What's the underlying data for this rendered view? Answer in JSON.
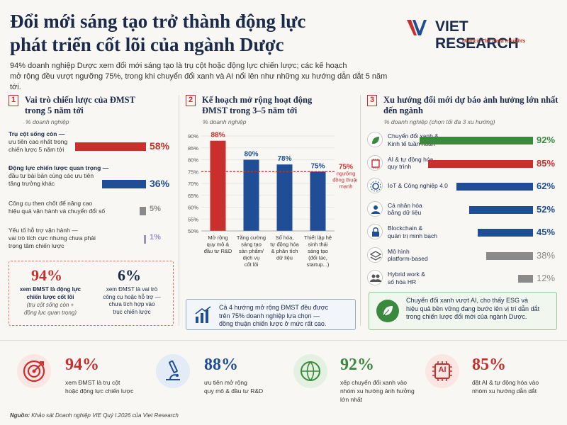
{
  "header": {
    "title_line1": "Đổi mới sáng tạo trở thành động lực",
    "title_line2": "phát triển cốt lõi của ngành Dược",
    "intro_line1": "94% doanh nghiệp Dược xem đổi mới sáng tạo là trụ cột hoặc động lực chiến lược; các kế hoạch",
    "intro_line2": "mở rộng đều vượt ngưỡng 75%, trong khi chuyển đổi xanh và AI nổi lên như những xu hướng dẫn dắt 5 năm tới."
  },
  "logo": {
    "name": "VIET RESEARCH",
    "tagline": "Unlock The Data Insights"
  },
  "colors": {
    "red": "#c9302c",
    "navy": "#1f4e96",
    "gray": "#8a8a8a",
    "purple": "#9c8fc9",
    "green": "#3a8a3e"
  },
  "section1": {
    "num": "1",
    "title_line1": "Vai trò chiến lược của ĐMST",
    "title_line2": "trong 5 năm tới",
    "subtitle": "% doanh nghiệp",
    "items": [
      {
        "label_bold": "Trụ cột sống còn —",
        "label_rest1": "ưu tiên cao nhất trong",
        "label_rest2": "chiến lược 5 năm tới",
        "value": 58,
        "value_label": "58%"
      },
      {
        "label_bold": "Động lực chiến lược quan trọng —",
        "label_rest1": "đầu tư bài bản cùng các ưu tiên",
        "label_rest2": "tăng trưởng khác",
        "value": 36,
        "value_label": "36%"
      },
      {
        "label_bold": "",
        "label_rest1": "Công cụ then chốt để nâng cao",
        "label_rest2": "hiệu quả vận hành và chuyển đổi số",
        "value": 5,
        "value_label": "5%"
      },
      {
        "label_bold": "",
        "label_rest1": "Yếu tố hỗ trợ vận hành —",
        "label_rest2": "vai trò tích cực nhưng chưa phải",
        "label_rest3": "trọng tâm chiến lược",
        "value": 1,
        "value_label": "1%"
      }
    ],
    "summary_left": {
      "num": "94%",
      "line1": "xem ĐMST là động lực",
      "line2": "chiến lược cốt lõi",
      "line3": "(trụ cột sống còn +",
      "line4": "động lực quan trọng)"
    },
    "summary_right": {
      "num": "6%",
      "line1": "xem ĐMST là vai trò",
      "line2": "công cụ hoặc hỗ trợ —",
      "line3": "chưa tích hợp vào",
      "line4": "trục chiến lược"
    }
  },
  "section2": {
    "num": "2",
    "title_line1": "Kế hoạch mở rộng hoạt động",
    "title_line2": "ĐMST trong 3–5 năm tới",
    "subtitle": "% doanh nghiệp",
    "threshold_label": "75%",
    "threshold_text1": "ngưỡng",
    "threshold_text2": "đồng thuận",
    "threshold_text3": "mạnh",
    "note_line1": "Cả 4 hướng mở rộng ĐMST đều được",
    "note_line2": "trên 75% doanh nghiệp lựa chọn —",
    "note_line3": "đồng thuận chiến lược ở mức rất cao."
  },
  "section3": {
    "num": "3",
    "title_line1": "Xu hướng đổi mới dự báo ảnh hưởng lớn nhất",
    "title_line2": "đến ngành",
    "subtitle": "% doanh nghiệp   (chọn tối đa 3 xu hướng)",
    "items": [
      {
        "line1": "Chuyển đổi xanh &",
        "line2": "Kinh tế tuần hoàn",
        "value": 92,
        "value_label": "92%",
        "icon": "leaf-icon"
      },
      {
        "line1": "AI & tự động hóa",
        "line2": "quy trình",
        "value": 85,
        "value_label": "85%",
        "icon": "ai-chip-icon"
      },
      {
        "line1": "IoT & Công nghiệp 4.0",
        "line2": "",
        "value": 62,
        "value_label": "62%",
        "icon": "iot-gear-icon"
      },
      {
        "line1": "Cá nhân hóa",
        "line2": "bằng dữ liệu",
        "value": 52,
        "value_label": "52%",
        "icon": "person-icon"
      },
      {
        "line1": "Blockchain &",
        "line2": "quản trị minh bạch",
        "value": 45,
        "value_label": "45%",
        "icon": "lock-icon"
      },
      {
        "line1": "Mô hình",
        "line2": "platform-based",
        "value": 38,
        "value_label": "38%",
        "icon": "layers-icon"
      },
      {
        "line1": "Hybrid work &",
        "line2": "số hóa HR",
        "value": 12,
        "value_label": "12%",
        "icon": "people-icon"
      }
    ],
    "note_line1": "Chuyển đổi xanh vượt AI, cho thấy ESG và",
    "note_line2": "hiệu quả bền vững đang bước lên vị trí dẫn dắt",
    "note_line3": "trong chiến lược đổi mới của ngành Dược."
  },
  "chart_data": {
    "type": "bar",
    "categories": [
      "Mở rộng quy mô & đầu tư R&D",
      "Tăng cường sáng tạo sản phẩm/dịch vụ cốt lõi",
      "Số hóa, tự động hóa & phân tích dữ liệu",
      "Thiết lập hệ sinh thái sáng tạo (đối tác, startup...)"
    ],
    "category_lines": [
      [
        "Mở rộng",
        "quy mô &",
        "đầu tư R&D"
      ],
      [
        "Tăng cường",
        "sáng tạo",
        "sản phẩm/",
        "dịch vụ",
        "cốt lõi"
      ],
      [
        "Số hóa,",
        "tự động hóa",
        "& phân tích",
        "dữ liệu"
      ],
      [
        "Thiết lập hệ",
        "sinh thái",
        "sáng tạo",
        "(đối tác,",
        "startup...)"
      ]
    ],
    "values": [
      88,
      80,
      78,
      75
    ],
    "value_labels": [
      "88%",
      "80%",
      "78%",
      "75%"
    ],
    "ylim": [
      50,
      90
    ],
    "yticks": [
      50,
      55,
      60,
      65,
      70,
      75,
      80,
      85,
      90
    ],
    "ytick_labels": [
      "50%",
      "55%",
      "60%",
      "65%",
      "70%",
      "75%",
      "80%",
      "85%",
      "90%"
    ],
    "threshold": 75,
    "grid": true
  },
  "bottom": {
    "stats": [
      {
        "num": "94%",
        "line1": "xem ĐMST là trụ cột",
        "line2": "hoặc động lực chiến lược",
        "line3": "",
        "icon": "target-icon"
      },
      {
        "num": "88%",
        "line1": "ưu tiên mở rộng",
        "line2": "quy mô & đầu tư R&D",
        "line3": "",
        "icon": "microscope-icon"
      },
      {
        "num": "92%",
        "line1": "xếp chuyển đổi xanh vào",
        "line2": "nhóm xu hướng ảnh hưởng",
        "line3": "lớn nhất",
        "icon": "globe-leaf-icon"
      },
      {
        "num": "85%",
        "line1": "đặt AI & tự động hóa vào",
        "line2": "nhóm xu hướng dẫn dắt",
        "line3": "",
        "icon": "ai-icon"
      }
    ],
    "ai_text": "AI",
    "source_label": "Nguồn:",
    "source_text": "Khảo sát Doanh nghiệp VIE Quý I.2026 của Viet Research"
  }
}
